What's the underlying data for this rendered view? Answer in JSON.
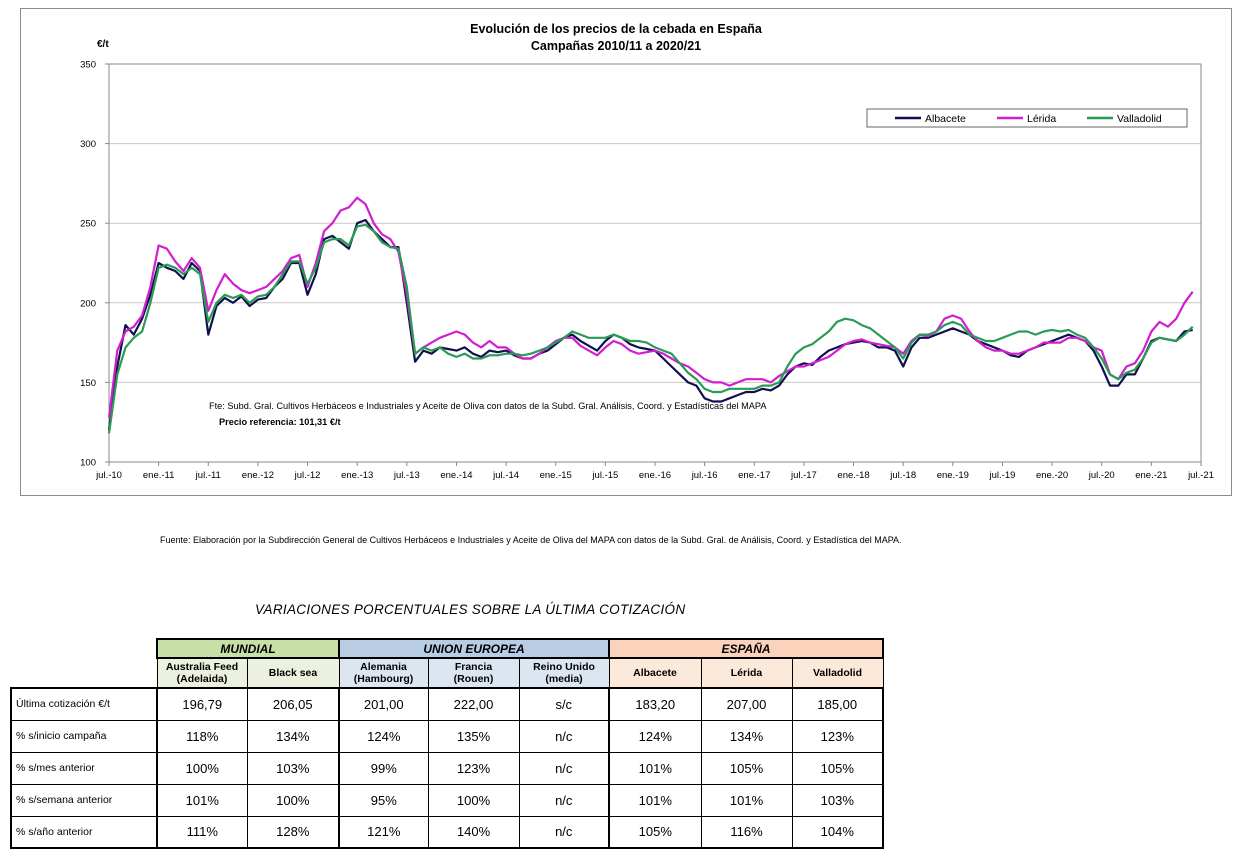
{
  "chart_data": {
    "type": "line",
    "title": "Evolución de los precios de la cebada en España",
    "subtitle": "Campañas 2010/11 a 2020/21",
    "ylabel": "€/t",
    "ylim": [
      100,
      350
    ],
    "yticks": [
      100,
      150,
      200,
      250,
      300,
      350
    ],
    "xlim": [
      "2010-07",
      "2021-07"
    ],
    "xticks": [
      "jul.-10",
      "ene.-11",
      "jul.-11",
      "ene.-12",
      "jul.-12",
      "ene.-13",
      "jul.-13",
      "ene.-14",
      "jul.-14",
      "ene.-15",
      "jul.-15",
      "ene.-16",
      "jul.-16",
      "ene.-17",
      "jul.-17",
      "ene.-18",
      "jul.-18",
      "ene.-19",
      "jul.-19",
      "ene.-20",
      "jul.-20",
      "ene.-21",
      "jul.-21"
    ],
    "grid": "horizontal",
    "legend": "top-right",
    "annotation_source": "Fte: Subd. Gral. Cultivos Herbáceos e Industriales y Aceite de Oliva con datos de la Subd. Gral. Análisis, Coord. y Estadísticas del MAPA",
    "annotation_reference": "Precio referencia: 101,31 €/t",
    "series": [
      {
        "name": "Albacete",
        "color": "#10104e",
        "x": [
          "2010-07",
          "2010-08",
          "2010-09",
          "2010-10",
          "2010-11",
          "2010-12",
          "2011-01",
          "2011-02",
          "2011-03",
          "2011-04",
          "2011-05",
          "2011-06",
          "2011-07",
          "2011-08",
          "2011-09",
          "2011-10",
          "2011-11",
          "2011-12",
          "2012-01",
          "2012-02",
          "2012-03",
          "2012-04",
          "2012-05",
          "2012-06",
          "2012-07",
          "2012-08",
          "2012-09",
          "2012-10",
          "2012-11",
          "2012-12",
          "2013-01",
          "2013-02",
          "2013-03",
          "2013-04",
          "2013-05",
          "2013-06",
          "2013-07",
          "2013-08",
          "2013-09",
          "2013-10",
          "2013-11",
          "2013-12",
          "2014-01",
          "2014-02",
          "2014-03",
          "2014-04",
          "2014-05",
          "2014-06",
          "2014-07",
          "2014-08",
          "2014-09",
          "2014-10",
          "2014-11",
          "2014-12",
          "2015-01",
          "2015-02",
          "2015-03",
          "2015-04",
          "2015-05",
          "2015-06",
          "2015-07",
          "2015-08",
          "2015-09",
          "2015-10",
          "2015-11",
          "2015-12",
          "2016-01",
          "2016-02",
          "2016-03",
          "2016-04",
          "2016-05",
          "2016-06",
          "2016-07",
          "2016-08",
          "2016-09",
          "2016-10",
          "2016-11",
          "2016-12",
          "2017-01",
          "2017-02",
          "2017-03",
          "2017-04",
          "2017-05",
          "2017-06",
          "2017-07",
          "2017-08",
          "2017-09",
          "2017-10",
          "2017-11",
          "2017-12",
          "2018-01",
          "2018-02",
          "2018-03",
          "2018-04",
          "2018-05",
          "2018-06",
          "2018-07",
          "2018-08",
          "2018-09",
          "2018-10",
          "2018-11",
          "2018-12",
          "2019-01",
          "2019-02",
          "2019-03",
          "2019-04",
          "2019-05",
          "2019-06",
          "2019-07",
          "2019-08",
          "2019-09",
          "2019-10",
          "2019-11",
          "2019-12",
          "2020-01",
          "2020-02",
          "2020-03",
          "2020-04",
          "2020-05",
          "2020-06",
          "2020-07",
          "2020-08",
          "2020-09",
          "2020-10",
          "2020-11",
          "2020-12",
          "2021-01",
          "2021-02",
          "2021-03",
          "2021-04",
          "2021-05",
          "2021-06"
        ],
        "y": [
          120,
          160,
          186,
          180,
          190,
          205,
          225,
          222,
          220,
          215,
          225,
          220,
          180,
          198,
          203,
          200,
          204,
          198,
          202,
          203,
          210,
          215,
          225,
          225,
          205,
          218,
          240,
          242,
          238,
          234,
          250,
          252,
          245,
          240,
          235,
          235,
          200,
          163,
          170,
          168,
          172,
          171,
          170,
          172,
          168,
          166,
          170,
          169,
          170,
          167,
          165,
          165,
          168,
          170,
          174,
          178,
          180,
          176,
          173,
          170,
          176,
          180,
          178,
          174,
          172,
          171,
          170,
          165,
          160,
          155,
          150,
          148,
          140,
          138,
          138,
          140,
          142,
          144,
          144,
          146,
          145,
          148,
          155,
          160,
          162,
          161,
          166,
          170,
          172,
          174,
          175,
          176,
          175,
          172,
          172,
          170,
          160,
          172,
          178,
          178,
          180,
          182,
          184,
          182,
          180,
          176,
          174,
          172,
          170,
          167,
          166,
          170,
          172,
          174,
          176,
          178,
          180,
          178,
          176,
          170,
          160,
          148,
          148,
          155,
          155,
          165,
          176,
          178,
          177,
          176,
          182,
          183
        ]
      },
      {
        "name": "Lérida",
        "color": "#d21ed2",
        "x": [
          "2010-07",
          "2010-08",
          "2010-09",
          "2010-10",
          "2010-11",
          "2010-12",
          "2011-01",
          "2011-02",
          "2011-03",
          "2011-04",
          "2011-05",
          "2011-06",
          "2011-07",
          "2011-08",
          "2011-09",
          "2011-10",
          "2011-11",
          "2011-12",
          "2012-01",
          "2012-02",
          "2012-03",
          "2012-04",
          "2012-05",
          "2012-06",
          "2012-07",
          "2012-08",
          "2012-09",
          "2012-10",
          "2012-11",
          "2012-12",
          "2013-01",
          "2013-02",
          "2013-03",
          "2013-04",
          "2013-05",
          "2013-06",
          "2013-07",
          "2013-08",
          "2013-09",
          "2013-10",
          "2013-11",
          "2013-12",
          "2014-01",
          "2014-02",
          "2014-03",
          "2014-04",
          "2014-05",
          "2014-06",
          "2014-07",
          "2014-08",
          "2014-09",
          "2014-10",
          "2014-11",
          "2014-12",
          "2015-01",
          "2015-02",
          "2015-03",
          "2015-04",
          "2015-05",
          "2015-06",
          "2015-07",
          "2015-08",
          "2015-09",
          "2015-10",
          "2015-11",
          "2015-12",
          "2016-01",
          "2016-02",
          "2016-03",
          "2016-04",
          "2016-05",
          "2016-06",
          "2016-07",
          "2016-08",
          "2016-09",
          "2016-10",
          "2016-11",
          "2016-12",
          "2017-01",
          "2017-02",
          "2017-03",
          "2017-04",
          "2017-05",
          "2017-06",
          "2017-07",
          "2017-08",
          "2017-09",
          "2017-10",
          "2017-11",
          "2017-12",
          "2018-01",
          "2018-02",
          "2018-03",
          "2018-04",
          "2018-05",
          "2018-06",
          "2018-07",
          "2018-08",
          "2018-09",
          "2018-10",
          "2018-11",
          "2018-12",
          "2019-01",
          "2019-02",
          "2019-03",
          "2019-04",
          "2019-05",
          "2019-06",
          "2019-07",
          "2019-08",
          "2019-09",
          "2019-10",
          "2019-11",
          "2019-12",
          "2020-01",
          "2020-02",
          "2020-03",
          "2020-04",
          "2020-05",
          "2020-06",
          "2020-07",
          "2020-08",
          "2020-09",
          "2020-10",
          "2020-11",
          "2020-12",
          "2021-01",
          "2021-02",
          "2021-03",
          "2021-04",
          "2021-05",
          "2021-06"
        ],
        "y": [
          128,
          170,
          182,
          185,
          192,
          210,
          236,
          234,
          226,
          220,
          228,
          222,
          195,
          208,
          218,
          212,
          208,
          206,
          208,
          210,
          215,
          220,
          228,
          230,
          210,
          225,
          245,
          250,
          258,
          260,
          266,
          262,
          250,
          243,
          240,
          232,
          205,
          168,
          172,
          175,
          178,
          180,
          182,
          180,
          175,
          172,
          176,
          172,
          172,
          168,
          165,
          165,
          168,
          172,
          176,
          178,
          178,
          173,
          170,
          167,
          172,
          176,
          174,
          170,
          168,
          169,
          170,
          168,
          165,
          162,
          160,
          156,
          152,
          150,
          150,
          148,
          150,
          152,
          152,
          152,
          150,
          154,
          157,
          160,
          160,
          162,
          164,
          166,
          170,
          174,
          176,
          177,
          175,
          174,
          173,
          172,
          168,
          176,
          180,
          179,
          182,
          190,
          192,
          190,
          182,
          176,
          172,
          170,
          170,
          168,
          168,
          170,
          172,
          175,
          175,
          175,
          178,
          178,
          176,
          172,
          170,
          155,
          152,
          160,
          162,
          170,
          182,
          188,
          185,
          190,
          200,
          207
        ]
      },
      {
        "name": "Valladolid",
        "color": "#2a9a55",
        "x": [
          "2010-07",
          "2010-08",
          "2010-09",
          "2010-10",
          "2010-11",
          "2010-12",
          "2011-01",
          "2011-02",
          "2011-03",
          "2011-04",
          "2011-05",
          "2011-06",
          "2011-07",
          "2011-08",
          "2011-09",
          "2011-10",
          "2011-11",
          "2011-12",
          "2012-01",
          "2012-02",
          "2012-03",
          "2012-04",
          "2012-05",
          "2012-06",
          "2012-07",
          "2012-08",
          "2012-09",
          "2012-10",
          "2012-11",
          "2012-12",
          "2013-01",
          "2013-02",
          "2013-03",
          "2013-04",
          "2013-05",
          "2013-06",
          "2013-07",
          "2013-08",
          "2013-09",
          "2013-10",
          "2013-11",
          "2013-12",
          "2014-01",
          "2014-02",
          "2014-03",
          "2014-04",
          "2014-05",
          "2014-06",
          "2014-07",
          "2014-08",
          "2014-09",
          "2014-10",
          "2014-11",
          "2014-12",
          "2015-01",
          "2015-02",
          "2015-03",
          "2015-04",
          "2015-05",
          "2015-06",
          "2015-07",
          "2015-08",
          "2015-09",
          "2015-10",
          "2015-11",
          "2015-12",
          "2016-01",
          "2016-02",
          "2016-03",
          "2016-04",
          "2016-05",
          "2016-06",
          "2016-07",
          "2016-08",
          "2016-09",
          "2016-10",
          "2016-11",
          "2016-12",
          "2017-01",
          "2017-02",
          "2017-03",
          "2017-04",
          "2017-05",
          "2017-06",
          "2017-07",
          "2017-08",
          "2017-09",
          "2017-10",
          "2017-11",
          "2017-12",
          "2018-01",
          "2018-02",
          "2018-03",
          "2018-04",
          "2018-05",
          "2018-06",
          "2018-07",
          "2018-08",
          "2018-09",
          "2018-10",
          "2018-11",
          "2018-12",
          "2019-01",
          "2019-02",
          "2019-03",
          "2019-04",
          "2019-05",
          "2019-06",
          "2019-07",
          "2019-08",
          "2019-09",
          "2019-10",
          "2019-11",
          "2019-12",
          "2020-01",
          "2020-02",
          "2020-03",
          "2020-04",
          "2020-05",
          "2020-06",
          "2020-07",
          "2020-08",
          "2020-09",
          "2020-10",
          "2020-11",
          "2020-12",
          "2021-01",
          "2021-02",
          "2021-03",
          "2021-04",
          "2021-05",
          "2021-06"
        ],
        "y": [
          118,
          155,
          172,
          178,
          182,
          200,
          222,
          224,
          222,
          218,
          222,
          218,
          188,
          200,
          205,
          203,
          205,
          200,
          204,
          205,
          210,
          218,
          226,
          226,
          212,
          222,
          238,
          240,
          240,
          236,
          248,
          249,
          245,
          238,
          235,
          234,
          210,
          168,
          172,
          170,
          172,
          168,
          166,
          168,
          165,
          165,
          167,
          167,
          168,
          168,
          167,
          168,
          170,
          172,
          175,
          178,
          182,
          180,
          178,
          178,
          178,
          180,
          178,
          176,
          176,
          175,
          172,
          170,
          168,
          162,
          156,
          152,
          146,
          144,
          144,
          146,
          146,
          146,
          146,
          148,
          148,
          150,
          160,
          168,
          172,
          174,
          178,
          182,
          188,
          190,
          189,
          186,
          184,
          180,
          176,
          172,
          165,
          175,
          180,
          180,
          182,
          186,
          188,
          186,
          180,
          178,
          176,
          176,
          178,
          180,
          182,
          182,
          180,
          182,
          183,
          182,
          183,
          180,
          178,
          172,
          165,
          155,
          152,
          156,
          158,
          165,
          175,
          178,
          177,
          176,
          180,
          185
        ]
      }
    ]
  },
  "source_note": "Fuente: Elaboración por la Subdirección General de Cultivos Herbáceos e Industriales y Aceite de Oliva del MAPA con datos de la Subd. Gral. de Análisis, Coord. y Estadística del MAPA.",
  "table": {
    "title": "VARIACIONES PORCENTUALES SOBRE LA ÚLTIMA COTIZACIÓN",
    "groups": [
      "MUNDIAL",
      "UNION EUROPEA",
      "ESPAÑA"
    ],
    "columns": [
      [
        "Australia Feed",
        "(Adelaida)"
      ],
      [
        "Black sea",
        ""
      ],
      [
        "Alemania",
        "(Hambourg)"
      ],
      [
        "Francia",
        "(Rouen)"
      ],
      [
        "Reino Unido",
        "(media)"
      ],
      [
        "Albacete",
        ""
      ],
      [
        "Lérida",
        ""
      ],
      [
        "Valladolid",
        ""
      ]
    ],
    "rows": [
      {
        "label": "Última cotización €/t",
        "values": [
          "196,79",
          "206,05",
          "201,00",
          "222,00",
          "s/c",
          "183,20",
          "207,00",
          "185,00"
        ]
      },
      {
        "label": "% s/inicio campaña",
        "values": [
          "118%",
          "134%",
          "124%",
          "135%",
          "n/c",
          "124%",
          "134%",
          "123%"
        ]
      },
      {
        "label": "% s/mes anterior",
        "values": [
          "100%",
          "103%",
          "99%",
          "123%",
          "n/c",
          "101%",
          "105%",
          "105%"
        ]
      },
      {
        "label": "% s/semana anterior",
        "values": [
          "101%",
          "100%",
          "95%",
          "100%",
          "n/c",
          "101%",
          "101%",
          "103%"
        ]
      },
      {
        "label": "% s/año anterior",
        "values": [
          "111%",
          "128%",
          "121%",
          "140%",
          "n/c",
          "105%",
          "116%",
          "104%"
        ]
      }
    ]
  }
}
